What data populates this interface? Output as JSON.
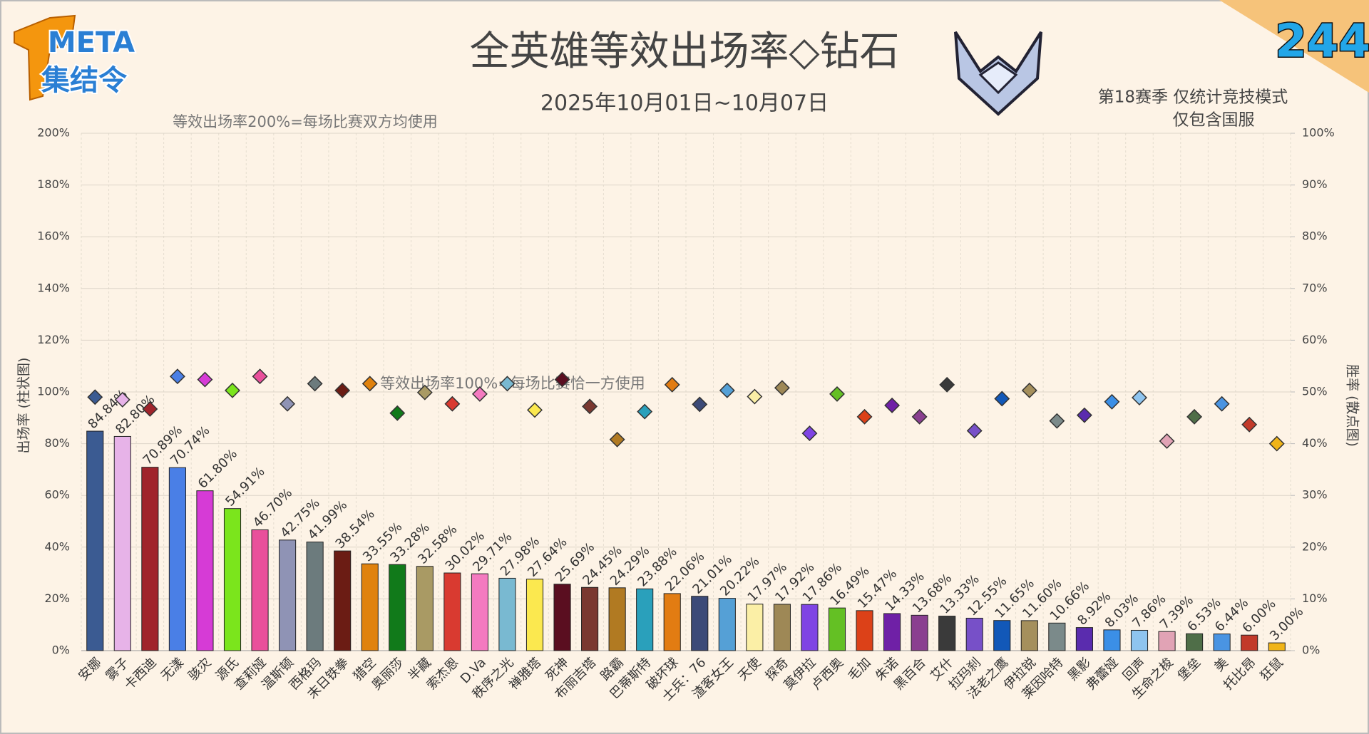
{
  "logo": {
    "top": "META",
    "bottom": "集结令"
  },
  "badge": "244",
  "chart_data": {
    "type": "bar",
    "title": "全英雄等效出场率◇钻石",
    "subtitle": "2025年10月01日~10月07日",
    "notes": [
      "等效出场率200%=每场比赛双方均使用",
      "等效出场率100%=每场比赛恰一方使用"
    ],
    "info": [
      "第18赛季 仅统计竞技模式",
      "仅包含国服"
    ],
    "y_label": "出场率 (柱状图)",
    "y2_label": "胜率 (散点图)",
    "categories": [
      "安娜",
      "雾子",
      "卡西迪",
      "无漾",
      "骇灾",
      "源氏",
      "查莉娅",
      "温斯顿",
      "西格玛",
      "末日铁拳",
      "猎空",
      "奥丽莎",
      "半藏",
      "索杰恩",
      "D.Va",
      "秩序之光",
      "禅雅塔",
      "死神",
      "布丽吉塔",
      "路霸",
      "巴蒂斯特",
      "破坏球",
      "士兵：76",
      "渣客女王",
      "天使",
      "探奇",
      "莫伊拉",
      "卢西奥",
      "毛加",
      "朱诺",
      "黑百合",
      "艾什",
      "拉玛刹",
      "法老之鹰",
      "伊拉锐",
      "莱因哈特",
      "黑影",
      "弗蕾娅",
      "回声",
      "生命之梭",
      "堡垒",
      "美",
      "托比昂",
      "狂鼠"
    ],
    "colors": [
      "#3b5b92",
      "#e7b3e8",
      "#a0242b",
      "#4a7fe6",
      "#d63bd6",
      "#7be51c",
      "#e9509b",
      "#8f93b5",
      "#6c7b7d",
      "#6b1c14",
      "#e0820e",
      "#117a1a",
      "#a99a64",
      "#d93a30",
      "#f47ac0",
      "#79b9d1",
      "#fbe84f",
      "#5a0e20",
      "#7a3830",
      "#b17a22",
      "#2aa0bb",
      "#e27c12",
      "#3c4a78",
      "#55a0d6",
      "#fbefa6",
      "#9e8856",
      "#7f44e4",
      "#64c024",
      "#dc4118",
      "#6f20a6",
      "#8a3f90",
      "#3a3a3a",
      "#7750c8",
      "#1258b8",
      "#a58f5c",
      "#7b8a8a",
      "#5a2cae",
      "#3b8fe6",
      "#8ec4ef",
      "#e1a3b5",
      "#4f6e48",
      "#4a94e2",
      "#c23a2a",
      "#f0b418"
    ],
    "series": [
      {
        "values": [
          84.84,
          82.8,
          70.89,
          70.74,
          61.8,
          54.91,
          46.7,
          42.75,
          41.99,
          38.54,
          33.55,
          33.28,
          32.58,
          30.02,
          29.71,
          27.98,
          27.64,
          25.69,
          24.45,
          24.29,
          23.88,
          22.06,
          21.01,
          20.22,
          17.97,
          17.92,
          17.86,
          16.49,
          15.47,
          14.33,
          13.68,
          13.33,
          12.55,
          11.65,
          11.6,
          10.66,
          8.92,
          8.03,
          7.86,
          7.39,
          6.53,
          6.44,
          6.0,
          3.0
        ],
        "value_labels": [
          "84.84%",
          "82.80%",
          "70.89%",
          "70.74%",
          "61.80%",
          "54.91%",
          "46.70%",
          "42.75%",
          "41.99%",
          "38.54%",
          "33.55%",
          "33.28%",
          "32.58%",
          "30.02%",
          "29.71%",
          "27.98%",
          "27.64%",
          "25.69%",
          "24.45%",
          "24.29%",
          "23.88%",
          "22.06%",
          "21.01%",
          "20.22%",
          "17.97%",
          "17.92%",
          "17.86%",
          "16.49%",
          "15.47%",
          "14.33%",
          "13.68%",
          "13.33%",
          "12.55%",
          "11.65%",
          "11.60%",
          "10.66%",
          "8.92%",
          "8.03%",
          "7.86%",
          "7.39%",
          "6.53%",
          "6.44%",
          "6.00%",
          "3.00%"
        ]
      },
      {
        "type": "scatter",
        "axis": "y2",
        "values": [
          49,
          48.5,
          46.7,
          53.0,
          52.4,
          50.3,
          53.0,
          47.7,
          51.6,
          50.3,
          51.6,
          45.9,
          49.9,
          47.7,
          49.6,
          51.6,
          46.5,
          52.4,
          47.2,
          40.8,
          46.2,
          51.4,
          47.6,
          50.3,
          49.1,
          50.8,
          42.0,
          49.6,
          45.2,
          47.4,
          45.2,
          51.4,
          42.5,
          48.7,
          50.3,
          44.4,
          45.5,
          48.1,
          48.9,
          40.5,
          45.2,
          47.7,
          43.7,
          40.0
        ]
      }
    ],
    "ylim": [
      0,
      200
    ],
    "yticks": [
      {
        "value": 0,
        "label": "0%"
      },
      {
        "value": 20,
        "label": "20%"
      },
      {
        "value": 40,
        "label": "40%"
      },
      {
        "value": 60,
        "label": "60%"
      },
      {
        "value": 80,
        "label": "80%"
      },
      {
        "value": 100,
        "label": "100%"
      },
      {
        "value": 120,
        "label": "120%"
      },
      {
        "value": 140,
        "label": "140%"
      },
      {
        "value": 160,
        "label": "160%"
      },
      {
        "value": 180,
        "label": "180%"
      },
      {
        "value": 200,
        "label": "200%"
      }
    ],
    "y2lim": [
      0,
      100
    ],
    "y2ticks": [
      {
        "value": 0,
        "label": "0%"
      },
      {
        "value": 10,
        "label": "10%"
      },
      {
        "value": 20,
        "label": "20%"
      },
      {
        "value": 30,
        "label": "30%"
      },
      {
        "value": 40,
        "label": "40%"
      },
      {
        "value": 50,
        "label": "50%"
      },
      {
        "value": 60,
        "label": "60%"
      },
      {
        "value": 70,
        "label": "70%"
      },
      {
        "value": 80,
        "label": "80%"
      },
      {
        "value": 90,
        "label": "90%"
      },
      {
        "value": 100,
        "label": "100%"
      }
    ],
    "grid": true
  }
}
